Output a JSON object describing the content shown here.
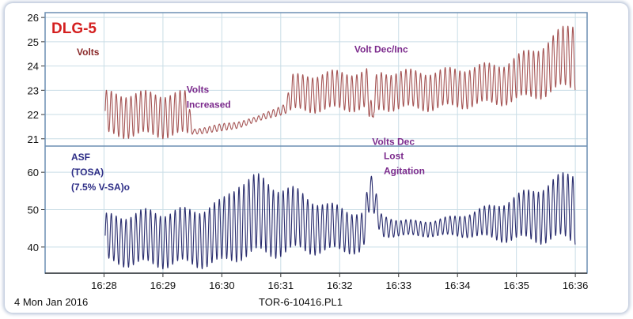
{
  "chart_data": {
    "type": "line",
    "title": "DLG-5",
    "colors": {
      "frame": "#6d8fb3",
      "grid": "#c9dde6",
      "title": "#d42020",
      "volts": "#a55555",
      "volts_note": "#8a2a2a",
      "asf": "#2a2d6e",
      "asf_note": "#2d2d86",
      "event_note": "#7b2a8c"
    },
    "x_ticks": [
      "16:28",
      "16:29",
      "16:30",
      "16:31",
      "16:32",
      "16:33",
      "16:34",
      "16:35",
      "16:36"
    ],
    "footer": {
      "date": "4 Mon Jan 2016",
      "file": "TOR-6-10416.PL1"
    },
    "panels": [
      {
        "id": "volts",
        "yticks": [
          21,
          22,
          23,
          24,
          25,
          26
        ],
        "ylim": [
          20.7,
          26.2
        ],
        "label_lines": [
          "Volts"
        ],
        "series": {
          "name": "Volts",
          "t_start": 16.467,
          "t_end": 16.6,
          "cycles_per_min": 12,
          "baseline": [
            [
              16.467,
              22.0
            ],
            [
              16.49,
              22.0
            ],
            [
              16.492,
              21.3
            ],
            [
              16.5,
              21.45
            ],
            [
              16.505,
              21.6
            ],
            [
              16.51,
              21.8
            ],
            [
              16.515,
              22.1
            ],
            [
              16.518,
              22.25
            ],
            [
              16.52,
              22.85
            ],
            [
              16.53,
              22.95
            ],
            [
              16.54,
              23.0
            ],
            [
              16.541,
              23.05
            ],
            [
              16.542,
              22.3
            ],
            [
              16.5425,
              21.2
            ],
            [
              16.543,
              22.7
            ],
            [
              16.545,
              23.0
            ],
            [
              16.56,
              23.0
            ],
            [
              16.58,
              23.3
            ],
            [
              16.59,
              23.8
            ],
            [
              16.6,
              24.5
            ]
          ],
          "amplitude": [
            [
              16.467,
              0.85
            ],
            [
              16.49,
              0.85
            ],
            [
              16.492,
              0.1
            ],
            [
              16.5,
              0.15
            ],
            [
              16.51,
              0.1
            ],
            [
              16.518,
              0.2
            ],
            [
              16.52,
              0.7
            ],
            [
              16.53,
              0.75
            ],
            [
              16.56,
              0.75
            ],
            [
              16.58,
              0.8
            ],
            [
              16.59,
              1.0
            ],
            [
              16.6,
              1.3
            ]
          ]
        }
      },
      {
        "id": "asf",
        "yticks": [
          40,
          50,
          60
        ],
        "ylim": [
          33,
          67
        ],
        "label_lines": [
          "ASF",
          "(TOSA)",
          "(7.5% V-SA)o"
        ],
        "series": {
          "name": "ASF",
          "t_start": 16.467,
          "t_end": 16.6,
          "cycles_per_min": 12,
          "baseline": [
            [
              16.467,
              42.0
            ],
            [
              16.49,
              42.5
            ],
            [
              16.5,
              43.5
            ],
            [
              16.505,
              48.0
            ],
            [
              16.51,
              48.0
            ],
            [
              16.52,
              47.0
            ],
            [
              16.53,
              45.0
            ],
            [
              16.54,
              44.0
            ],
            [
              16.542,
              55.0
            ],
            [
              16.5435,
              51.0
            ],
            [
              16.545,
              46.0
            ],
            [
              16.55,
              45.0
            ],
            [
              16.56,
              45.0
            ],
            [
              16.57,
              46.0
            ],
            [
              16.58,
              47.0
            ],
            [
              16.59,
              49.0
            ],
            [
              16.6,
              51.0
            ]
          ],
          "amplitude": [
            [
              16.467,
              6.0
            ],
            [
              16.48,
              7.0
            ],
            [
              16.49,
              7.0
            ],
            [
              16.5,
              8.0
            ],
            [
              16.505,
              10.0
            ],
            [
              16.51,
              10.0
            ],
            [
              16.52,
              8.0
            ],
            [
              16.53,
              6.0
            ],
            [
              16.54,
              5.0
            ],
            [
              16.545,
              3.0
            ],
            [
              16.55,
              2.0
            ],
            [
              16.56,
              2.0
            ],
            [
              16.57,
              3.0
            ],
            [
              16.58,
              5.0
            ],
            [
              16.59,
              7.0
            ],
            [
              16.6,
              9.0
            ]
          ]
        }
      }
    ],
    "annotations": [
      {
        "panel": "volts",
        "lines": [
          "Volts",
          "Increased"
        ],
        "t": 16.49,
        "y": 22.9
      },
      {
        "panel": "volts",
        "lines": [
          "Volt Dec/Inc"
        ],
        "t": 16.5375,
        "y": 24.55
      },
      {
        "panel": "volts",
        "lines": [
          "Volts Dec"
        ],
        "t": 16.5425,
        "y": 20.75
      },
      {
        "panel": "asf",
        "lines": [
          "Lost",
          "Agitation"
        ],
        "t": 16.5458,
        "y": 63.5
      }
    ]
  }
}
